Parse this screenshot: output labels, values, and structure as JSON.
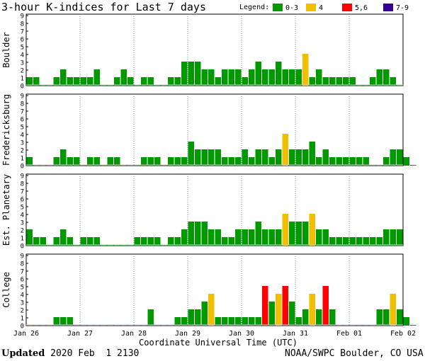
{
  "title": "3-hour K-indices for Last 7 days",
  "legend": {
    "label": "Legend:",
    "items": [
      {
        "label": "0-3",
        "color": "#009900"
      },
      {
        "label": "4",
        "color": "#f0c000"
      },
      {
        "label": "5,6",
        "color": "#ff0000"
      },
      {
        "label": "7-9",
        "color": "#330099"
      }
    ]
  },
  "footer": {
    "updated_label": "Updated",
    "updated_value": " 2020 Feb  1 2130",
    "source": "NOAA/SWPC Boulder, CO USA"
  },
  "chart_data": {
    "type": "bar",
    "xlabel": "Coordinate Universal Time (UTC)",
    "x_ticks": [
      "Jan 26",
      "Jan 27",
      "Jan 28",
      "Jan 29",
      "Jan 30",
      "Jan 31",
      "Feb 01",
      "Feb 02"
    ],
    "ylim": [
      0,
      9
    ],
    "y_ticks": [
      "0",
      "1",
      "2",
      "3",
      "4",
      "5",
      "6",
      "7",
      "8",
      "9"
    ],
    "bins_per_day": 8,
    "panels": [
      {
        "name": "Boulder",
        "values": [
          1,
          1,
          0,
          0,
          1,
          2,
          1,
          1,
          1,
          1,
          2,
          0,
          0,
          1,
          2,
          1,
          0,
          1,
          1,
          0,
          0,
          1,
          1,
          3,
          3,
          3,
          2,
          2,
          1,
          2,
          2,
          2,
          1,
          2,
          3,
          2,
          2,
          3,
          2,
          2,
          2,
          4,
          1,
          2,
          1,
          1,
          1,
          1,
          1,
          0,
          0,
          1,
          2,
          2,
          1,
          0
        ]
      },
      {
        "name": "Fredericksburg",
        "values": [
          1,
          0,
          0,
          0,
          1,
          2,
          1,
          1,
          0,
          1,
          1,
          0,
          1,
          1,
          0,
          0,
          0,
          1,
          1,
          1,
          0,
          1,
          1,
          1,
          3,
          2,
          2,
          2,
          2,
          1,
          1,
          1,
          2,
          1,
          2,
          2,
          1,
          2,
          4,
          2,
          2,
          2,
          3,
          1,
          2,
          1,
          1,
          1,
          1,
          1,
          1,
          0,
          0,
          1,
          2,
          2,
          1,
          0
        ]
      },
      {
        "name": "Est. Planetary",
        "values": [
          2,
          1,
          1,
          0,
          1,
          2,
          1,
          0,
          1,
          1,
          1,
          0,
          0,
          0,
          0,
          0,
          1,
          1,
          1,
          1,
          0,
          1,
          1,
          2,
          3,
          3,
          3,
          2,
          2,
          1,
          1,
          2,
          2,
          2,
          3,
          2,
          2,
          2,
          4,
          3,
          3,
          3,
          4,
          2,
          2,
          1,
          1,
          1,
          1,
          1,
          1,
          1,
          1,
          2,
          2,
          2
        ]
      },
      {
        "name": "College",
        "values": [
          0,
          0,
          0,
          0,
          1,
          1,
          1,
          0,
          0,
          0,
          0,
          0,
          0,
          0,
          0,
          0,
          0,
          0,
          2,
          0,
          0,
          0,
          1,
          1,
          2,
          2,
          3,
          4,
          1,
          1,
          1,
          1,
          1,
          1,
          1,
          5,
          3,
          4,
          5,
          3,
          1,
          2,
          4,
          2,
          5,
          2,
          0,
          0,
          0,
          0,
          0,
          0,
          2,
          2,
          4,
          2,
          1,
          0
        ]
      }
    ]
  }
}
